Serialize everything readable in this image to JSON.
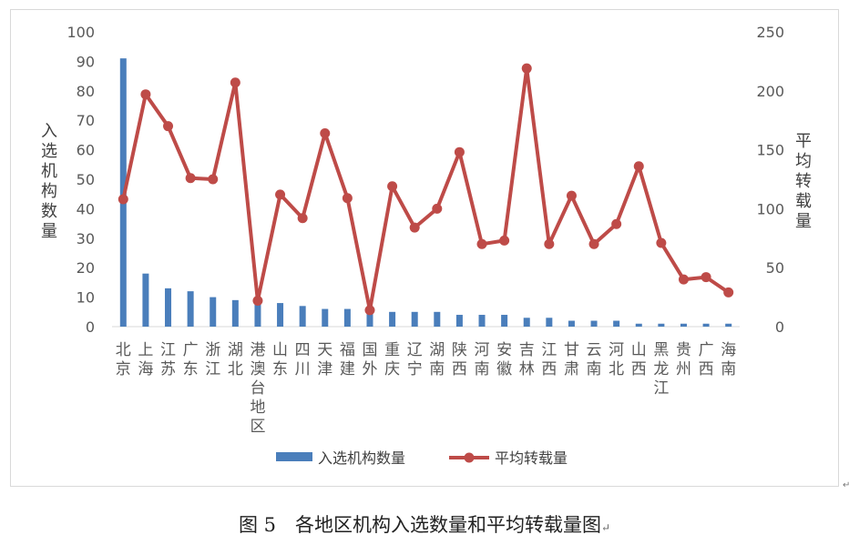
{
  "chart_data": {
    "type": "bar+line",
    "categories": [
      "北京",
      "上海",
      "江苏",
      "广东",
      "浙江",
      "湖北",
      "港澳台地区",
      "山东",
      "四川",
      "天津",
      "福建",
      "国外",
      "重庆",
      "辽宁",
      "湖南",
      "陕西",
      "河南",
      "安徽",
      "吉林",
      "江西",
      "甘肃",
      "云南",
      "河北",
      "山西",
      "黑龙江",
      "贵州",
      "广西",
      "海南"
    ],
    "series": [
      {
        "name": "入选机构数量",
        "type": "bar",
        "axis": "left",
        "color": "#4a7ebb",
        "values": [
          91,
          18,
          13,
          12,
          10,
          9,
          8,
          8,
          7,
          6,
          6,
          5,
          5,
          5,
          5,
          4,
          4,
          4,
          3,
          3,
          2,
          2,
          2,
          1,
          1,
          1,
          1,
          1
        ]
      },
      {
        "name": "平均转载量",
        "type": "line",
        "axis": "right",
        "color": "#be4b48",
        "values": [
          108,
          197,
          170,
          126,
          125,
          207,
          22,
          112,
          92,
          164,
          109,
          14,
          119,
          84,
          100,
          148,
          70,
          73,
          219,
          70,
          111,
          70,
          87,
          136,
          71,
          40,
          42,
          29
        ]
      }
    ],
    "y_left": {
      "label": "入选机构数量",
      "min": 0,
      "max": 100,
      "ticks": [
        0,
        10,
        20,
        30,
        40,
        50,
        60,
        70,
        80,
        90,
        100
      ]
    },
    "y_right": {
      "label": "平均转载量",
      "min": 0,
      "max": 250,
      "ticks": [
        0,
        50,
        100,
        150,
        200,
        250
      ]
    },
    "legend": {
      "position": "bottom",
      "entries": [
        "入选机构数量",
        "平均转载量"
      ]
    },
    "grid": false
  },
  "caption": {
    "text": "图 5　各地区机构入选数量和平均转载量图",
    "mark": "↵"
  },
  "corner_mark": "↵"
}
